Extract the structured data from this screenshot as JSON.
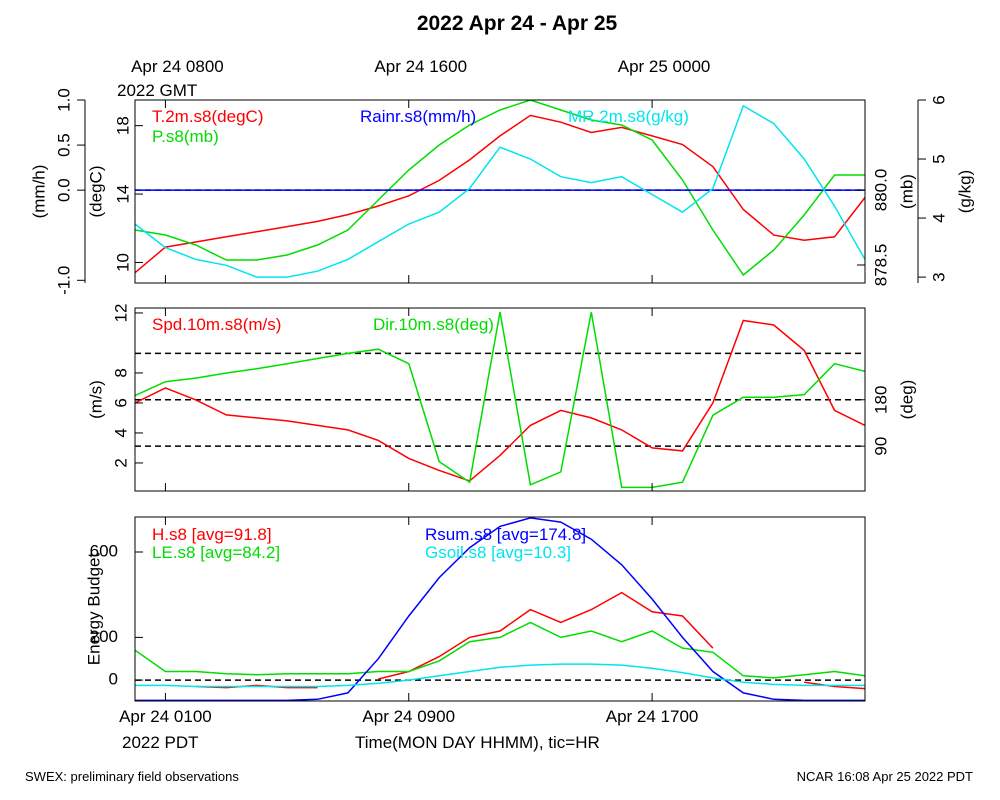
{
  "title": "2022 Apr 24 - Apr 25",
  "xlabel": "Time(MON DAY HHMM), tic=HR",
  "xticks": [
    {
      "value": 0,
      "label": "Apr 24 0100"
    },
    {
      "value": 8,
      "label": "Apr 24 0900"
    },
    {
      "value": 16,
      "label": "Apr 24 1700"
    }
  ],
  "xtick_note": "2022 PDT",
  "top_xticks": [
    {
      "value": 0,
      "label": "Apr 24 0800"
    },
    {
      "value": 8,
      "label": "Apr 24 1600"
    },
    {
      "value": 16,
      "label": "Apr 25 0000"
    }
  ],
  "top_xtick_note": "2022 GMT",
  "footer_left": "SWEX: preliminary field observations",
  "footer_right": "NCAR 16:08 Apr 25 2022 PDT",
  "chart_data": [
    {
      "type": "line",
      "xlim": [
        -1,
        23
      ],
      "x": [
        -1,
        0,
        1,
        2,
        3,
        4,
        5,
        6,
        7,
        8,
        9,
        10,
        11,
        12,
        13,
        14,
        15,
        16,
        17,
        18,
        19,
        20,
        21,
        22,
        23
      ],
      "axes": [
        {
          "label": "(mm/h)",
          "lim": [
            -1.03,
            1.0
          ],
          "ticks": [
            {
              "value": -1,
              "label": "-1.0"
            },
            {
              "value": 0,
              "label": "0.0"
            },
            0.5,
            {
              "value": 1,
              "label": "1.0"
            }
          ]
        },
        {
          "label": "(degC)",
          "lim": [
            8.8,
            19.5
          ],
          "ticks": [
            10,
            14,
            18
          ]
        },
        {
          "label": "(mb)",
          "lim": [
            878.14,
            881.8
          ],
          "ticks": [
            878.5,
            {
              "value": 880,
              "label": "880.0"
            }
          ]
        },
        {
          "label": "(g/kg)",
          "lim": [
            2.9,
            6.0
          ],
          "ticks": [
            3,
            4,
            5,
            6
          ]
        }
      ],
      "hlines": [
        0
      ],
      "hline_axis": 0,
      "series": [
        {
          "name": "T.2m.s8(degC)",
          "color": "#ff0000",
          "axis": 1,
          "values": [
            9.4,
            10.9,
            11.2,
            11.5,
            11.8,
            12.1,
            12.4,
            12.8,
            13.3,
            13.9,
            14.8,
            16.0,
            17.4,
            18.6,
            18.2,
            17.6,
            17.9,
            17.4,
            16.9,
            15.6,
            13.1,
            11.6,
            11.3,
            11.5,
            13.8
          ]
        },
        {
          "name": "P.s8(mb)",
          "color": "#00dd00",
          "axis": 2,
          "values": [
            879.2,
            879.1,
            878.9,
            878.6,
            878.6,
            878.7,
            878.9,
            879.2,
            879.8,
            880.4,
            880.9,
            881.3,
            881.6,
            881.8,
            881.6,
            881.4,
            881.3,
            881.0,
            880.2,
            879.2,
            878.3,
            878.8,
            879.5,
            880.3,
            880.3
          ]
        },
        {
          "name": "Rainr.s8(mm/h)",
          "color": "#0000ff",
          "axis": 0,
          "values": [
            0,
            0,
            0,
            0,
            0,
            0,
            0,
            0,
            0,
            0,
            0,
            0,
            0,
            0,
            0,
            0,
            0,
            0,
            0,
            0,
            0,
            0,
            0,
            0,
            0
          ]
        },
        {
          "name": "MR.2m.s8(g/kg)",
          "color": "#00e5ee",
          "axis": 3,
          "values": [
            3.9,
            3.5,
            3.3,
            3.2,
            3.0,
            3.0,
            3.1,
            3.3,
            3.6,
            3.9,
            4.1,
            4.5,
            5.2,
            5.0,
            4.7,
            4.6,
            4.7,
            4.4,
            4.1,
            4.5,
            5.9,
            5.6,
            5.0,
            4.2,
            3.3
          ]
        }
      ]
    },
    {
      "type": "line",
      "xlim": [
        -1,
        23
      ],
      "x": [
        -1,
        0,
        1,
        2,
        3,
        4,
        5,
        6,
        7,
        8,
        9,
        10,
        11,
        12,
        13,
        14,
        15,
        16,
        17,
        18,
        19,
        20,
        21,
        22,
        23
      ],
      "axes": [
        {
          "label": "(m/s)",
          "lim": [
            0.13,
            12.33
          ],
          "ticks": [
            2,
            4,
            6,
            8,
            12
          ]
        },
        {
          "label": "(deg)",
          "lim": [
            3,
            358
          ],
          "ticks": [
            90,
            180
          ]
        }
      ],
      "hlines": [
        90,
        180,
        270
      ],
      "hline_axis": 1,
      "series": [
        {
          "name": "Spd.10m.s8(m/s)",
          "color": "#ff0000",
          "axis": 0,
          "values": [
            6.0,
            7.0,
            6.2,
            5.2,
            5.0,
            4.8,
            4.5,
            4.2,
            3.5,
            2.3,
            1.5,
            0.8,
            2.5,
            4.5,
            5.5,
            5.0,
            4.2,
            3.0,
            2.8,
            6.0,
            11.5,
            11.2,
            9.5,
            5.5,
            4.5
          ]
        },
        {
          "name": "Dir.10m.s8(deg)",
          "color": "#00dd00",
          "axis": 1,
          "values": [
            188,
            215,
            222,
            232,
            240,
            250,
            260,
            270,
            278,
            250,
            60,
            20,
            350,
            15,
            40,
            350,
            10,
            10,
            20,
            150,
            185,
            185,
            190,
            250,
            235
          ]
        }
      ]
    },
    {
      "type": "line",
      "xlim": [
        -1,
        23
      ],
      "x": [
        -1,
        0,
        1,
        2,
        3,
        4,
        5,
        6,
        7,
        8,
        9,
        10,
        11,
        12,
        13,
        14,
        15,
        16,
        17,
        18,
        19,
        20,
        21,
        22,
        23
      ],
      "axes": [
        {
          "label": "Energy Budget",
          "lim": [
            -98,
            764
          ],
          "ticks": [
            0,
            200,
            600
          ]
        }
      ],
      "hlines": [
        0
      ],
      "hline_axis": 0,
      "series": [
        {
          "name": "H.s8 [avg=91.8]",
          "color": "#ff0000",
          "axis": 0,
          "values": [
            null,
            null,
            -30,
            -35,
            -25,
            -35,
            -35,
            null,
            5,
            40,
            110,
            200,
            230,
            330,
            270,
            330,
            410,
            320,
            300,
            150,
            null,
            null,
            -10,
            -30,
            -40
          ]
        },
        {
          "name": "LE.s8 [avg=84.2]",
          "color": "#00dd00",
          "axis": 0,
          "values": [
            140,
            40,
            40,
            30,
            25,
            30,
            30,
            30,
            40,
            40,
            90,
            180,
            200,
            270,
            200,
            230,
            180,
            230,
            150,
            130,
            20,
            10,
            25,
            40,
            20
          ]
        },
        {
          "name": "Rsum.s8 [avg=174.8]",
          "color": "#0000ff",
          "axis": 0,
          "values": [
            -95,
            -95,
            -95,
            -95,
            -95,
            -95,
            -90,
            -60,
            100,
            300,
            480,
            620,
            720,
            760,
            740,
            660,
            540,
            380,
            200,
            40,
            -60,
            -90,
            -95,
            -95,
            -95
          ]
        },
        {
          "name": "Gsoil.s8 [avg=10.3]",
          "color": "#00e5ee",
          "axis": 0,
          "values": [
            -25,
            -25,
            -30,
            -30,
            -30,
            -30,
            -30,
            -25,
            -15,
            0,
            20,
            40,
            60,
            70,
            75,
            75,
            70,
            55,
            35,
            10,
            -10,
            -20,
            -25,
            -25,
            -25
          ]
        }
      ]
    }
  ]
}
